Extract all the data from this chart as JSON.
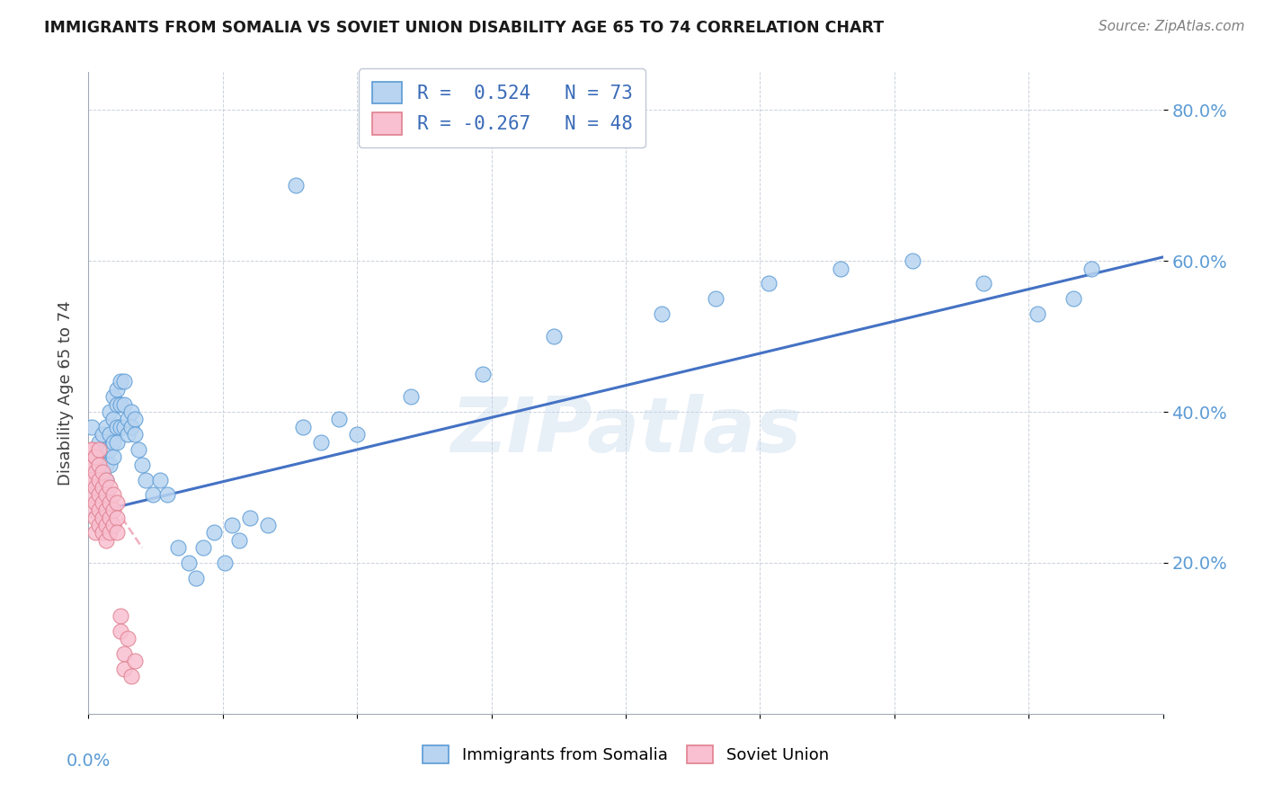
{
  "title": "IMMIGRANTS FROM SOMALIA VS SOVIET UNION DISABILITY AGE 65 TO 74 CORRELATION CHART",
  "source": "Source: ZipAtlas.com",
  "ylabel": "Disability Age 65 to 74",
  "ytick_vals": [
    0.2,
    0.4,
    0.6,
    0.8
  ],
  "legend1_label": "Immigrants from Somalia",
  "legend2_label": "Soviet Union",
  "r1": 0.524,
  "n1": 73,
  "r2": -0.267,
  "n2": 48,
  "color_somalia_fill": "#b8d4f0",
  "color_somalia_edge": "#5b9bd5",
  "color_soviet_fill": "#f8c0d0",
  "color_soviet_edge": "#e08090",
  "color_somalia_line": "#4472c4",
  "color_soviet_line": "#f0b0c0",
  "watermark": "ZIPatlas",
  "xlim": [
    0.0,
    0.3
  ],
  "ylim": [
    0.0,
    0.85
  ],
  "somalia_x": [
    0.001,
    0.001,
    0.002,
    0.002,
    0.003,
    0.003,
    0.003,
    0.004,
    0.004,
    0.004,
    0.004,
    0.005,
    0.005,
    0.005,
    0.005,
    0.005,
    0.006,
    0.006,
    0.006,
    0.006,
    0.007,
    0.007,
    0.007,
    0.007,
    0.008,
    0.008,
    0.008,
    0.008,
    0.009,
    0.009,
    0.009,
    0.01,
    0.01,
    0.01,
    0.011,
    0.011,
    0.012,
    0.012,
    0.013,
    0.013,
    0.014,
    0.015,
    0.016,
    0.018,
    0.02,
    0.022,
    0.025,
    0.028,
    0.03,
    0.032,
    0.035,
    0.038,
    0.04,
    0.042,
    0.045,
    0.05,
    0.058,
    0.06,
    0.065,
    0.07,
    0.075,
    0.09,
    0.11,
    0.13,
    0.16,
    0.175,
    0.19,
    0.21,
    0.23,
    0.25,
    0.265,
    0.275,
    0.28
  ],
  "somalia_y": [
    0.38,
    0.32,
    0.35,
    0.3,
    0.36,
    0.33,
    0.3,
    0.37,
    0.34,
    0.32,
    0.3,
    0.38,
    0.35,
    0.33,
    0.31,
    0.29,
    0.4,
    0.37,
    0.35,
    0.33,
    0.42,
    0.39,
    0.36,
    0.34,
    0.43,
    0.41,
    0.38,
    0.36,
    0.44,
    0.41,
    0.38,
    0.44,
    0.41,
    0.38,
    0.39,
    0.37,
    0.4,
    0.38,
    0.39,
    0.37,
    0.35,
    0.33,
    0.31,
    0.29,
    0.31,
    0.29,
    0.22,
    0.2,
    0.18,
    0.22,
    0.24,
    0.2,
    0.25,
    0.23,
    0.26,
    0.25,
    0.7,
    0.38,
    0.36,
    0.39,
    0.37,
    0.42,
    0.45,
    0.5,
    0.53,
    0.55,
    0.57,
    0.59,
    0.6,
    0.57,
    0.53,
    0.55,
    0.59
  ],
  "soviet_x": [
    0.001,
    0.001,
    0.001,
    0.001,
    0.001,
    0.001,
    0.001,
    0.001,
    0.002,
    0.002,
    0.002,
    0.002,
    0.002,
    0.002,
    0.002,
    0.003,
    0.003,
    0.003,
    0.003,
    0.003,
    0.003,
    0.004,
    0.004,
    0.004,
    0.004,
    0.004,
    0.005,
    0.005,
    0.005,
    0.005,
    0.005,
    0.006,
    0.006,
    0.006,
    0.006,
    0.007,
    0.007,
    0.007,
    0.008,
    0.008,
    0.008,
    0.009,
    0.009,
    0.01,
    0.01,
    0.011,
    0.012,
    0.013
  ],
  "soviet_y": [
    0.35,
    0.33,
    0.31,
    0.29,
    0.27,
    0.35,
    0.33,
    0.31,
    0.34,
    0.32,
    0.3,
    0.28,
    0.26,
    0.24,
    0.34,
    0.33,
    0.31,
    0.29,
    0.27,
    0.25,
    0.35,
    0.32,
    0.3,
    0.28,
    0.26,
    0.24,
    0.31,
    0.29,
    0.27,
    0.25,
    0.23,
    0.3,
    0.28,
    0.26,
    0.24,
    0.29,
    0.27,
    0.25,
    0.28,
    0.26,
    0.24,
    0.13,
    0.11,
    0.08,
    0.06,
    0.1,
    0.05,
    0.07
  ],
  "somalia_trend_x": [
    0.0,
    0.3
  ],
  "somalia_trend_y": [
    0.265,
    0.605
  ],
  "soviet_trend_x": [
    0.0,
    0.015
  ],
  "soviet_trend_y": [
    0.325,
    0.22
  ]
}
